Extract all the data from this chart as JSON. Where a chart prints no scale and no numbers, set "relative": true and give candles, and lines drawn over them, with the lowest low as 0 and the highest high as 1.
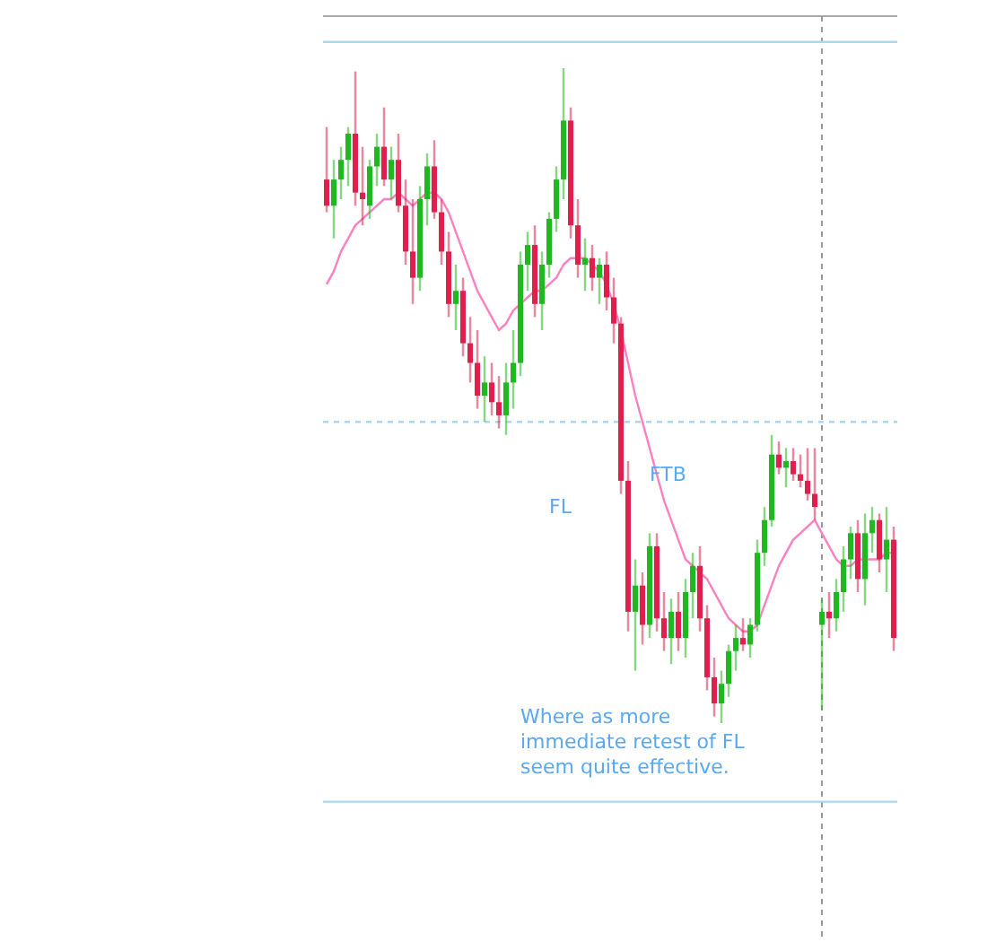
{
  "chart_data": {
    "type": "candlestick",
    "relative": true,
    "categories": [
      null,
      null,
      null,
      null,
      null,
      null,
      null,
      null,
      null,
      null,
      null,
      null,
      null,
      null,
      null,
      null,
      null,
      null,
      null,
      null,
      null,
      null,
      null,
      null,
      null,
      null,
      null,
      null,
      null,
      null,
      null,
      null,
      null,
      null,
      null,
      null,
      null,
      null,
      null,
      null,
      null,
      null,
      null,
      null,
      null,
      null,
      null,
      null,
      null,
      null,
      null,
      null,
      null,
      null,
      null,
      null,
      null,
      null,
      null,
      null,
      null,
      null,
      null,
      null,
      null,
      null,
      null,
      null,
      null,
      null,
      null,
      null,
      null,
      null,
      null,
      null,
      null,
      null,
      null,
      null
    ],
    "ohlc": [
      [
        0.83,
        0.91,
        0.78,
        0.79
      ],
      [
        0.79,
        0.86,
        0.74,
        0.83
      ],
      [
        0.83,
        0.88,
        0.8,
        0.86
      ],
      [
        0.86,
        0.91,
        0.82,
        0.9
      ],
      [
        0.9,
        0.995,
        0.79,
        0.81
      ],
      [
        0.81,
        0.88,
        0.76,
        0.8
      ],
      [
        0.79,
        0.86,
        0.77,
        0.85
      ],
      [
        0.85,
        0.9,
        0.82,
        0.88
      ],
      [
        0.88,
        0.94,
        0.82,
        0.83
      ],
      [
        0.83,
        0.88,
        0.8,
        0.86
      ],
      [
        0.86,
        0.9,
        0.78,
        0.79
      ],
      [
        0.79,
        0.83,
        0.7,
        0.72
      ],
      [
        0.72,
        0.8,
        0.64,
        0.68
      ],
      [
        0.68,
        0.82,
        0.66,
        0.8
      ],
      [
        0.8,
        0.87,
        0.76,
        0.85
      ],
      [
        0.85,
        0.89,
        0.77,
        0.78
      ],
      [
        0.78,
        0.8,
        0.7,
        0.72
      ],
      [
        0.72,
        0.75,
        0.62,
        0.64
      ],
      [
        0.64,
        0.7,
        0.6,
        0.66
      ],
      [
        0.66,
        0.68,
        0.56,
        0.58
      ],
      [
        0.58,
        0.62,
        0.52,
        0.55
      ],
      [
        0.55,
        0.6,
        0.48,
        0.5
      ],
      [
        0.5,
        0.56,
        0.46,
        0.52
      ],
      [
        0.52,
        0.55,
        0.47,
        0.49
      ],
      [
        0.49,
        0.53,
        0.45,
        0.47
      ],
      [
        0.47,
        0.55,
        0.44,
        0.52
      ],
      [
        0.52,
        0.6,
        0.48,
        0.55
      ],
      [
        0.55,
        0.72,
        0.53,
        0.7
      ],
      [
        0.7,
        0.75,
        0.66,
        0.73
      ],
      [
        0.73,
        0.76,
        0.62,
        0.64
      ],
      [
        0.64,
        0.72,
        0.6,
        0.7
      ],
      [
        0.7,
        0.78,
        0.68,
        0.77
      ],
      [
        0.77,
        0.85,
        0.75,
        0.83
      ],
      [
        0.83,
        1.0,
        0.8,
        0.92
      ],
      [
        0.92,
        0.94,
        0.74,
        0.76
      ],
      [
        0.76,
        0.8,
        0.68,
        0.7
      ],
      [
        0.7,
        0.74,
        0.66,
        0.71
      ],
      [
        0.71,
        0.73,
        0.66,
        0.68
      ],
      [
        0.68,
        0.71,
        0.64,
        0.7
      ],
      [
        0.7,
        0.72,
        0.63,
        0.65
      ],
      [
        0.65,
        0.68,
        0.58,
        0.61
      ],
      [
        0.61,
        0.62,
        0.35,
        0.37
      ],
      [
        0.37,
        0.4,
        0.14,
        0.17
      ],
      [
        0.17,
        0.25,
        0.08,
        0.21
      ],
      [
        0.21,
        0.23,
        0.12,
        0.15
      ],
      [
        0.15,
        0.29,
        0.13,
        0.27
      ],
      [
        0.27,
        0.29,
        0.14,
        0.16
      ],
      [
        0.16,
        0.2,
        0.11,
        0.13
      ],
      [
        0.13,
        0.19,
        0.09,
        0.17
      ],
      [
        0.17,
        0.2,
        0.11,
        0.13
      ],
      [
        0.13,
        0.22,
        0.1,
        0.2
      ],
      [
        0.2,
        0.26,
        0.16,
        0.24
      ],
      [
        0.24,
        0.27,
        0.14,
        0.16
      ],
      [
        0.16,
        0.18,
        0.05,
        0.07
      ],
      [
        0.07,
        0.1,
        0.01,
        0.03
      ],
      [
        0.03,
        0.08,
        0.0,
        0.06
      ],
      [
        0.06,
        0.12,
        0.04,
        0.11
      ],
      [
        0.11,
        0.15,
        0.08,
        0.13
      ],
      [
        0.13,
        0.16,
        0.11,
        0.12
      ],
      [
        0.12,
        0.16,
        0.1,
        0.15
      ],
      [
        0.15,
        0.28,
        0.14,
        0.26
      ],
      [
        0.26,
        0.33,
        0.24,
        0.31
      ],
      [
        0.31,
        0.44,
        0.3,
        0.41
      ],
      [
        0.41,
        0.43,
        0.38,
        0.39
      ],
      [
        0.39,
        0.42,
        0.36,
        0.4
      ],
      [
        0.4,
        0.42,
        0.37,
        0.38
      ],
      [
        0.38,
        0.41,
        0.36,
        0.37
      ],
      [
        0.37,
        0.42,
        0.34,
        0.35
      ],
      [
        0.35,
        0.42,
        0.31,
        0.33
      ],
      [
        0.15,
        0.19,
        0.02,
        0.17
      ],
      [
        0.17,
        0.2,
        0.13,
        0.16
      ],
      [
        0.16,
        0.22,
        0.14,
        0.2
      ],
      [
        0.2,
        0.27,
        0.17,
        0.25
      ],
      [
        0.25,
        0.3,
        0.22,
        0.29
      ],
      [
        0.29,
        0.31,
        0.2,
        0.22
      ],
      [
        0.22,
        0.32,
        0.18,
        0.29
      ],
      [
        0.29,
        0.33,
        0.26,
        0.31
      ],
      [
        0.31,
        0.32,
        0.23,
        0.25
      ],
      [
        0.25,
        0.33,
        0.2,
        0.28
      ],
      [
        0.28,
        0.3,
        0.11,
        0.13
      ]
    ],
    "series": [
      {
        "type": "line",
        "color": "#ff80c0",
        "values": [
          0.67,
          0.69,
          0.72,
          0.74,
          0.76,
          0.77,
          0.78,
          0.79,
          0.8,
          0.8,
          0.81,
          0.8,
          0.79,
          0.8,
          0.81,
          0.81,
          0.8,
          0.78,
          0.75,
          0.72,
          0.69,
          0.66,
          0.64,
          0.62,
          0.6,
          0.61,
          0.63,
          0.64,
          0.65,
          0.66,
          0.66,
          0.67,
          0.68,
          0.7,
          0.71,
          0.71,
          0.71,
          0.7,
          0.69,
          0.67,
          0.64,
          0.6,
          0.55,
          0.5,
          0.46,
          0.42,
          0.38,
          0.34,
          0.31,
          0.28,
          0.25,
          0.24,
          0.23,
          0.22,
          0.2,
          0.18,
          0.16,
          0.15,
          0.14,
          0.14,
          0.15,
          0.18,
          0.21,
          0.24,
          0.26,
          0.28,
          0.29,
          0.3,
          0.31,
          0.29,
          0.27,
          0.25,
          0.24,
          0.24,
          0.25,
          0.25,
          0.25,
          0.25,
          0.26,
          0.26
        ]
      }
    ],
    "ref_lines": [
      {
        "axis": "y",
        "value": 1.04,
        "color": "#a8d8f0",
        "line_style": "solid"
      },
      {
        "axis": "y",
        "value": 0.46,
        "color": "#a8d8f0",
        "line_style": "dashed"
      },
      {
        "axis": "y",
        "value": -0.12,
        "color": "#a8d8f0",
        "line_style": "solid"
      }
    ],
    "annotations": [
      "FL",
      "FTB",
      "Where as more immediate retest of FL seem quite effective."
    ]
  }
}
